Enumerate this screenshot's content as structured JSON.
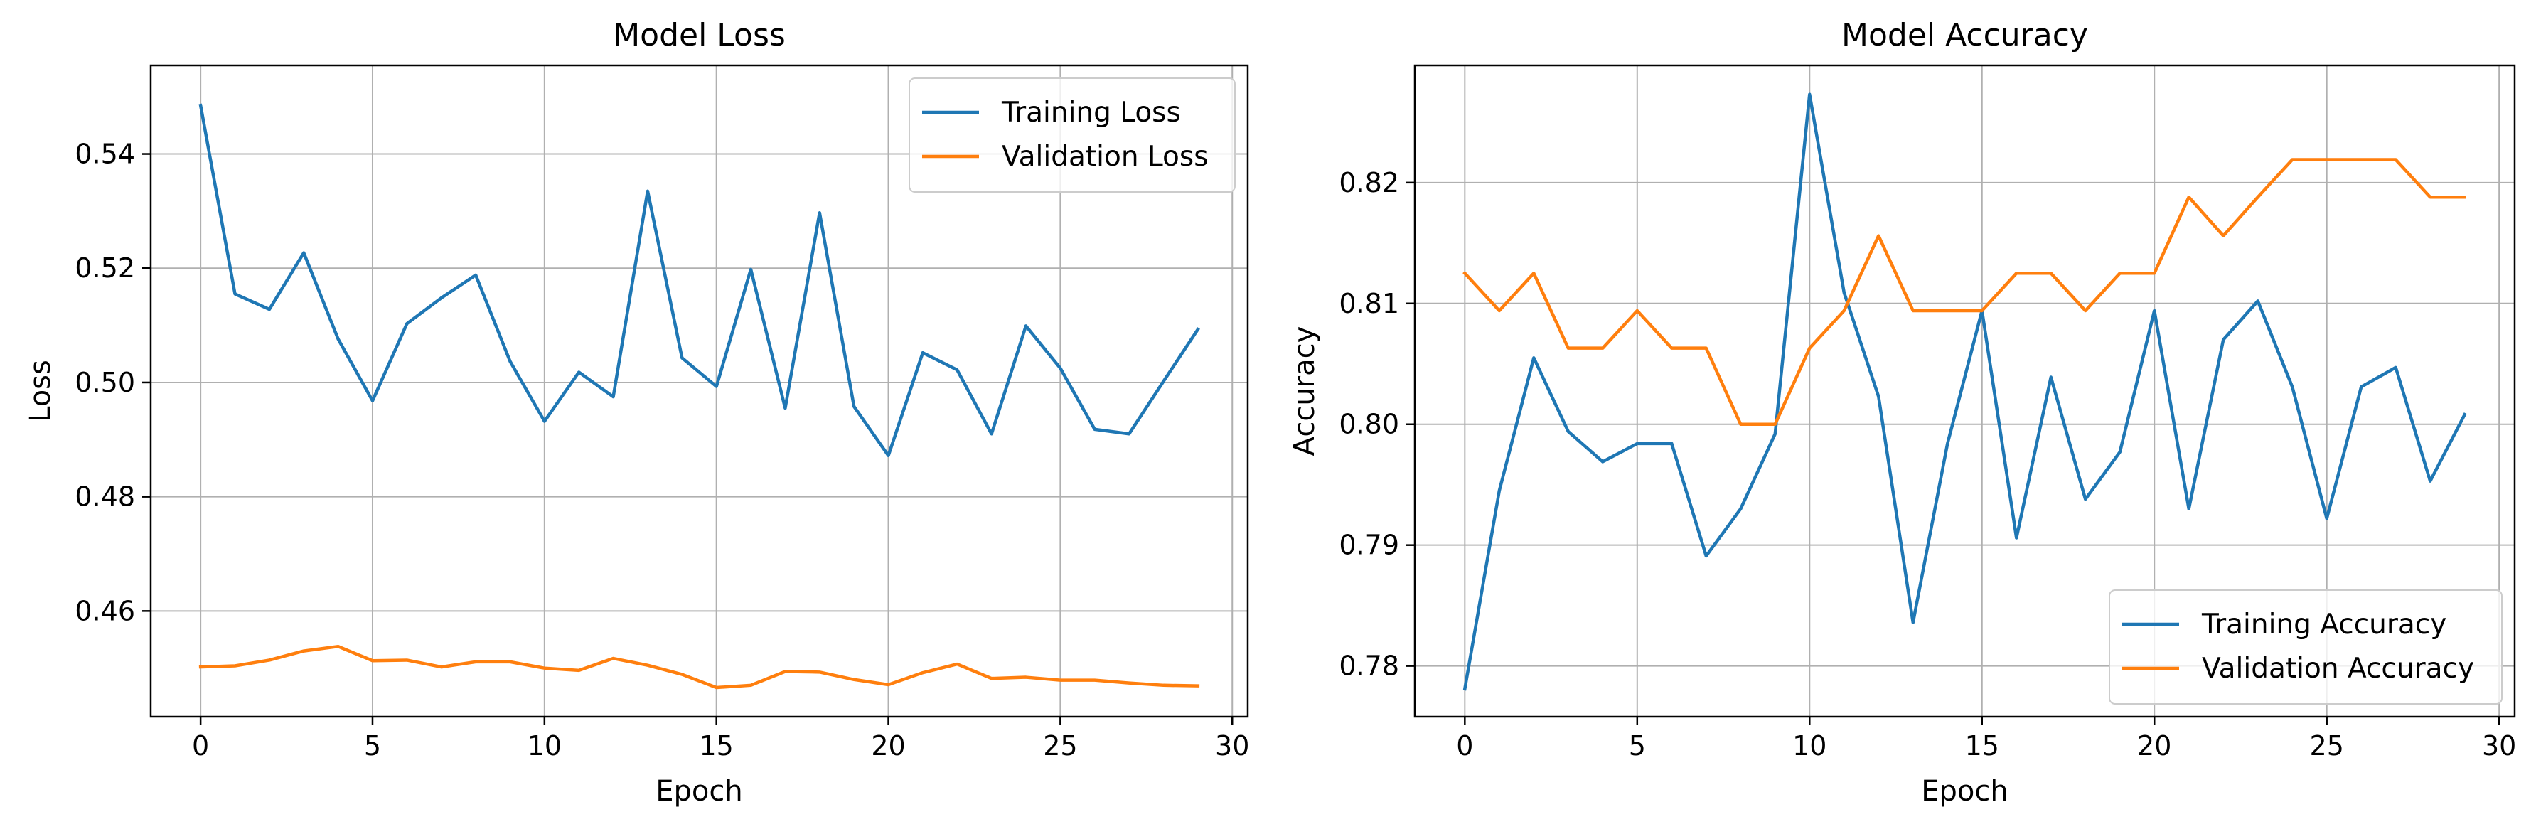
{
  "chart_data": [
    {
      "type": "line",
      "title": "Model Loss",
      "xlabel": "Epoch",
      "ylabel": "Loss",
      "x": [
        0,
        1,
        2,
        3,
        4,
        5,
        6,
        7,
        8,
        9,
        10,
        11,
        12,
        13,
        14,
        15,
        16,
        17,
        18,
        19,
        20,
        21,
        22,
        23,
        24,
        25,
        26,
        27,
        28,
        29
      ],
      "xlim": [
        -1.45,
        30.45
      ],
      "ylim": [
        0.4415,
        0.5555
      ],
      "xticks": [
        0,
        5,
        10,
        15,
        20,
        25,
        30
      ],
      "xtick_labels": [
        "0",
        "5",
        "10",
        "15",
        "20",
        "25",
        "30"
      ],
      "yticks": [
        0.46,
        0.48,
        0.5,
        0.52,
        0.54
      ],
      "ytick_labels": [
        "0.46",
        "0.48",
        "0.50",
        "0.52",
        "0.54"
      ],
      "grid": true,
      "legend_position": "top-right",
      "series": [
        {
          "name": "Training Loss",
          "color": "#1f77b4",
          "values": [
            0.5485,
            0.5155,
            0.5128,
            0.5227,
            0.5076,
            0.4968,
            0.5103,
            0.5148,
            0.5188,
            0.5037,
            0.4932,
            0.5018,
            0.4975,
            0.5335,
            0.5043,
            0.4993,
            0.5198,
            0.4955,
            0.5297,
            0.4958,
            0.4872,
            0.5052,
            0.5022,
            0.491,
            0.5099,
            0.5025,
            0.4918,
            0.491,
            0.5002,
            0.5093
          ]
        },
        {
          "name": "Validation Loss",
          "color": "#ff7f0e",
          "values": [
            0.4502,
            0.4504,
            0.4514,
            0.453,
            0.4538,
            0.4513,
            0.4514,
            0.4502,
            0.4511,
            0.4511,
            0.45,
            0.4496,
            0.4517,
            0.4505,
            0.4489,
            0.4466,
            0.447,
            0.4494,
            0.4493,
            0.448,
            0.4471,
            0.4492,
            0.4507,
            0.4482,
            0.4484,
            0.4479,
            0.4479,
            0.4474,
            0.447,
            0.4469
          ]
        }
      ]
    },
    {
      "type": "line",
      "title": "Model Accuracy",
      "xlabel": "Epoch",
      "ylabel": "Accuracy",
      "x": [
        0,
        1,
        2,
        3,
        4,
        5,
        6,
        7,
        8,
        9,
        10,
        11,
        12,
        13,
        14,
        15,
        16,
        17,
        18,
        19,
        20,
        21,
        22,
        23,
        24,
        25,
        26,
        27,
        28,
        29
      ],
      "xlim": [
        -1.45,
        30.45
      ],
      "ylim": [
        0.7758,
        0.8297
      ],
      "xticks": [
        0,
        5,
        10,
        15,
        20,
        25,
        30
      ],
      "xtick_labels": [
        "0",
        "5",
        "10",
        "15",
        "20",
        "25",
        "30"
      ],
      "yticks": [
        0.78,
        0.79,
        0.8,
        0.81,
        0.82
      ],
      "ytick_labels": [
        "0.78",
        "0.79",
        "0.80",
        "0.81",
        "0.82"
      ],
      "grid": true,
      "legend_position": "bottom-right",
      "series": [
        {
          "name": "Training Accuracy",
          "color": "#1f77b4",
          "values": [
            0.7781,
            0.7945,
            0.8055,
            0.7994,
            0.7969,
            0.7984,
            0.7984,
            0.7891,
            0.793,
            0.7992,
            0.8273,
            0.8109,
            0.8023,
            0.7836,
            0.7984,
            0.8094,
            0.7906,
            0.8039,
            0.7938,
            0.7977,
            0.8094,
            0.793,
            0.807,
            0.8102,
            0.8031,
            0.7922,
            0.8031,
            0.8047,
            0.7953,
            0.8008
          ]
        },
        {
          "name": "Validation Accuracy",
          "color": "#ff7f0e",
          "values": [
            0.8125,
            0.8094,
            0.8125,
            0.8063,
            0.8063,
            0.8094,
            0.8063,
            0.8063,
            0.8,
            0.8,
            0.8063,
            0.8094,
            0.8156,
            0.8094,
            0.8094,
            0.8094,
            0.8125,
            0.8125,
            0.8094,
            0.8125,
            0.8125,
            0.8188,
            0.8156,
            0.8188,
            0.8219,
            0.8219,
            0.8219,
            0.8219,
            0.8188,
            0.8188
          ]
        }
      ]
    }
  ]
}
